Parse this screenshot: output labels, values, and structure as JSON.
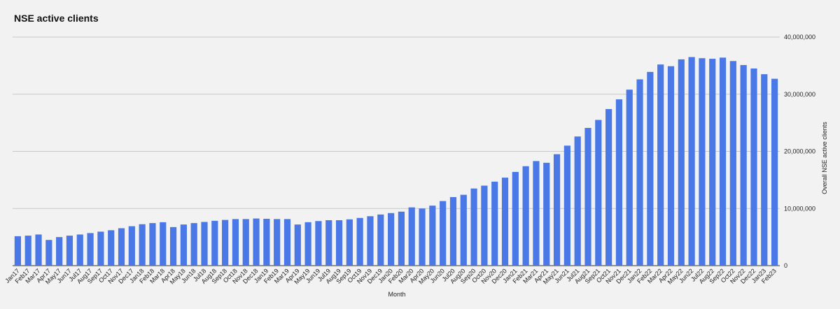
{
  "chart_data": {
    "type": "bar",
    "title": "NSE active clients",
    "xlabel": "Month",
    "ylabel": "Overall NSE active clients",
    "y_axis_position": "right",
    "ylim": [
      0,
      40000000
    ],
    "y_ticks": [
      0,
      10000000,
      20000000,
      30000000,
      40000000
    ],
    "y_tick_labels": [
      "0",
      "10,000,000",
      "20,000,000",
      "30,000,000",
      "40,000,000"
    ],
    "grid": true,
    "bar_color": "#4a78e6",
    "categories": [
      "Jan17",
      "Feb17",
      "Mar17",
      "Apr17",
      "May17",
      "Jun17",
      "Jul17",
      "Aug17",
      "Sep17",
      "Oct17",
      "Nov17",
      "Dec17",
      "Jan18",
      "Feb18",
      "Mar18",
      "Apr18",
      "May18",
      "Jun18",
      "Jul18",
      "Aug18",
      "Sep18",
      "Oct18",
      "Nov18",
      "Dec18",
      "Jan19",
      "Feb19",
      "Mar19",
      "Apr19",
      "May19",
      "Jun19",
      "Jul19",
      "Aug19",
      "Sep19",
      "Oct19",
      "Nov19",
      "Dec19",
      "Jan20",
      "Feb20",
      "Mar20",
      "Apr20",
      "May20",
      "Jun20",
      "Jul20",
      "Aug20",
      "Sep20",
      "Oct20",
      "Nov20",
      "Dec20",
      "Jan21",
      "Feb21",
      "Mar21",
      "Apr21",
      "May21",
      "Jun21",
      "Jul21",
      "Aug21",
      "Sep21",
      "Oct21",
      "Nov21",
      "Dec21",
      "Jan22",
      "Feb22",
      "Mar22",
      "Apr22",
      "May22",
      "Jun22",
      "Jul22",
      "Aug22",
      "Sep22",
      "Oct22",
      "Nov22",
      "Dec22",
      "Jan23",
      "Feb23"
    ],
    "values": [
      5150000,
      5250000,
      5450000,
      4500000,
      5000000,
      5250000,
      5450000,
      5700000,
      5950000,
      6200000,
      6550000,
      6900000,
      7250000,
      7450000,
      7600000,
      6750000,
      7200000,
      7450000,
      7650000,
      7850000,
      8000000,
      8150000,
      8150000,
      8250000,
      8200000,
      8150000,
      8150000,
      7200000,
      7600000,
      7800000,
      7950000,
      7950000,
      8100000,
      8350000,
      8650000,
      8950000,
      9200000,
      9450000,
      10200000,
      10000000,
      10500000,
      11300000,
      12000000,
      12400000,
      13500000,
      14000000,
      14700000,
      15400000,
      16400000,
      17400000,
      18300000,
      18000000,
      19500000,
      21000000,
      22600000,
      24100000,
      25500000,
      27400000,
      29100000,
      30800000,
      32600000,
      33900000,
      35200000,
      34900000,
      36100000,
      36500000,
      36300000,
      36200000,
      36400000,
      35800000,
      35100000,
      34500000,
      33500000,
      32700000
    ]
  }
}
